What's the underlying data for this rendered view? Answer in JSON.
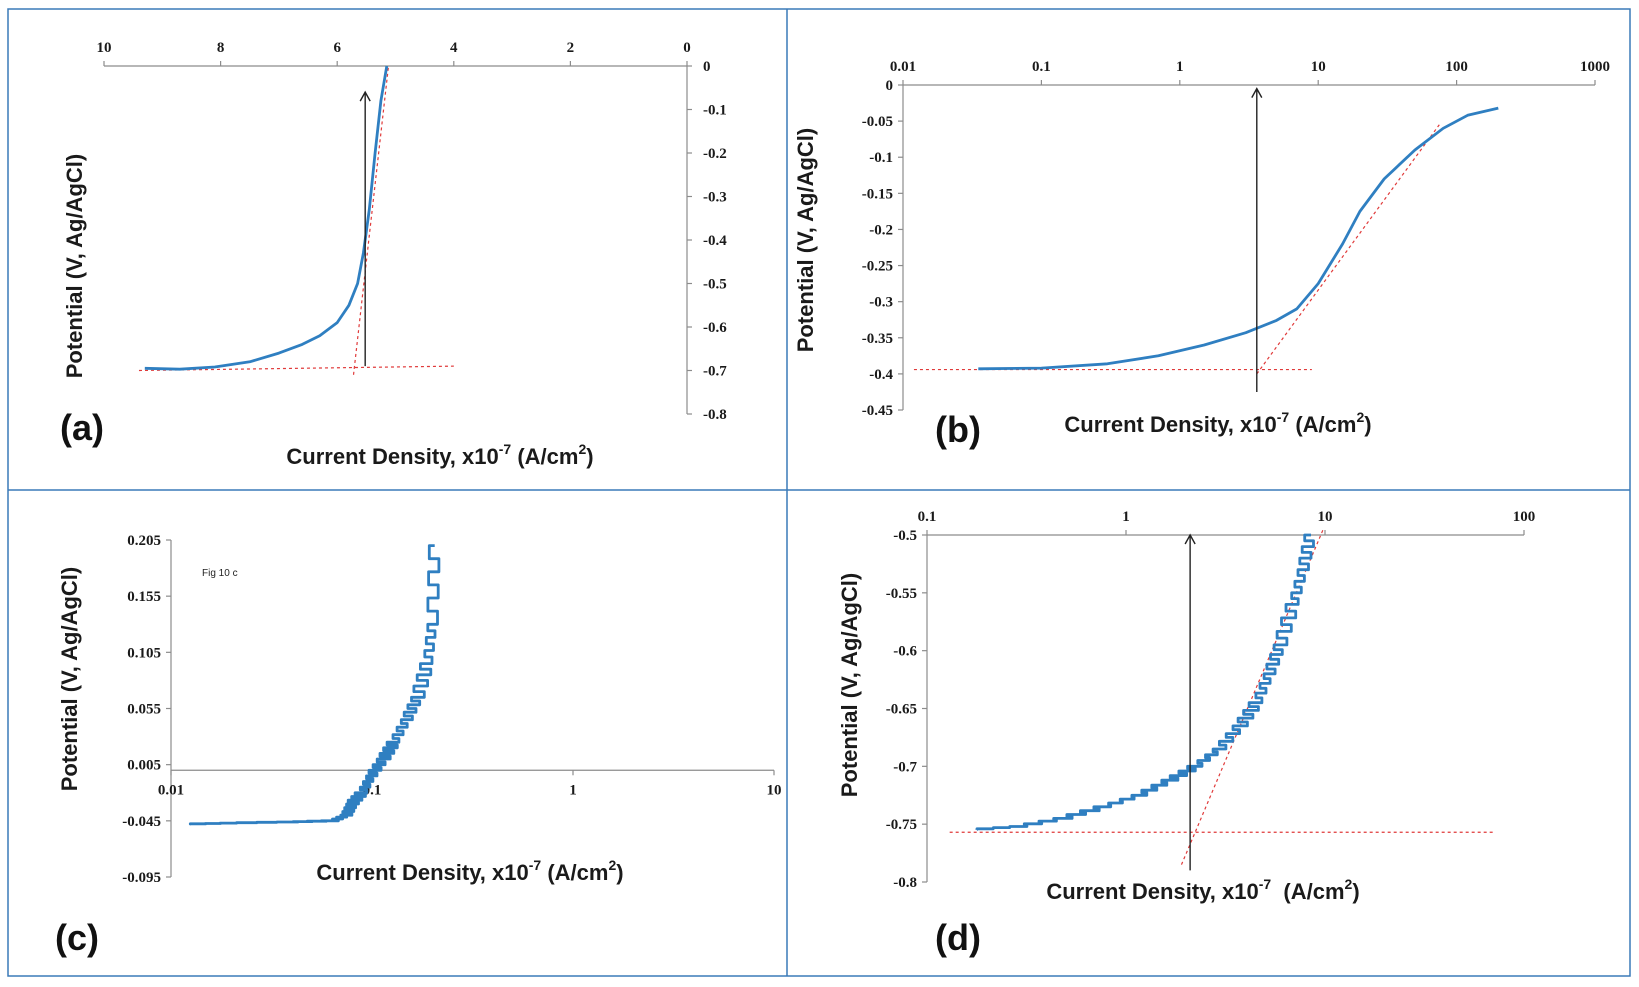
{
  "chart_data": [
    {
      "type": "line",
      "panel_label": "(a)",
      "title": "",
      "xlabel": "Current Density, x10",
      "xlabel_exp": "-7",
      "xlabel_units_pre": " (A/cm",
      "xlabel_units_exp": "2",
      "xlabel_units_post": ")",
      "ylabel": "Potential (V, Ag/AgCl)",
      "x_scale": "linear",
      "x_reversed": true,
      "xlim": [
        0,
        10
      ],
      "ylim": [
        -0.8,
        0
      ],
      "x_ticks": [
        10,
        8,
        6,
        4,
        2,
        0
      ],
      "x_tick_labels": [
        "10",
        "8",
        "6",
        "4",
        "2",
        "0"
      ],
      "y_ticks": [
        0,
        -0.1,
        -0.2,
        -0.3,
        -0.4,
        -0.5,
        -0.6,
        -0.7,
        -0.8
      ],
      "y_tick_labels": [
        "0",
        "-0.1",
        "-0.2",
        "-0.3",
        "-0.4",
        "-0.5",
        "-0.6",
        "-0.7",
        "-0.8"
      ],
      "series": [
        {
          "name": "polarization curve",
          "x": [
            9.3,
            8.7,
            8.1,
            7.5,
            7.0,
            6.6,
            6.3,
            6.0,
            5.8,
            5.65,
            5.55,
            5.45,
            5.35,
            5.25,
            5.15
          ],
          "y": [
            -0.695,
            -0.697,
            -0.692,
            -0.68,
            -0.66,
            -0.64,
            -0.62,
            -0.59,
            -0.55,
            -0.5,
            -0.43,
            -0.33,
            -0.2,
            -0.08,
            0.0
          ]
        }
      ],
      "tangents": [
        {
          "x": [
            9.4,
            4.0
          ],
          "y": [
            -0.7,
            -0.69
          ]
        },
        {
          "x": [
            5.72,
            5.12
          ],
          "y": [
            -0.71,
            0.0
          ]
        }
      ],
      "arrow": {
        "x": 5.52,
        "y_from": -0.69,
        "y_to": -0.06
      }
    },
    {
      "type": "line",
      "panel_label": "(b)",
      "title": "",
      "xlabel": "Current Density, x10",
      "xlabel_exp": "-7",
      "xlabel_units_pre": " (A/cm",
      "xlabel_units_exp": "2",
      "xlabel_units_post": ")",
      "ylabel": "Potential (V, Ag/AgCl)",
      "x_scale": "log",
      "xlim": [
        0.01,
        1000
      ],
      "ylim": [
        -0.45,
        0
      ],
      "x_ticks": [
        0.01,
        0.1,
        1,
        10,
        100,
        1000
      ],
      "x_tick_labels": [
        "0.01",
        "0.1",
        "1",
        "10",
        "100",
        "1000"
      ],
      "y_ticks": [
        0,
        -0.05,
        -0.1,
        -0.15,
        -0.2,
        -0.25,
        -0.3,
        -0.35,
        -0.4,
        -0.45
      ],
      "y_tick_labels": [
        "0",
        "-0.05",
        "-0.1",
        "-0.15",
        "-0.2",
        "-0.25",
        "-0.3",
        "-0.35",
        "-0.4",
        "-0.45"
      ],
      "series": [
        {
          "name": "polarization curve",
          "x": [
            0.035,
            0.1,
            0.3,
            0.7,
            1.5,
            3,
            5,
            7,
            10,
            15,
            20,
            30,
            50,
            80,
            120,
            200
          ],
          "y": [
            -0.393,
            -0.392,
            -0.386,
            -0.375,
            -0.36,
            -0.343,
            -0.326,
            -0.31,
            -0.275,
            -0.22,
            -0.175,
            -0.13,
            -0.09,
            -0.06,
            -0.042,
            -0.032
          ]
        }
      ],
      "tangents": [
        {
          "x": [
            0.012,
            9.0
          ],
          "y": [
            -0.394,
            -0.394
          ]
        },
        {
          "x": [
            3.6,
            75
          ],
          "y": [
            -0.4,
            -0.055
          ]
        }
      ],
      "arrow": {
        "x": 3.6,
        "y_from": -0.425,
        "y_to": -0.005
      }
    },
    {
      "type": "line",
      "panel_label": "(c)",
      "annotation": "Fig 10 c",
      "title": "",
      "xlabel": "Current Density, x10",
      "xlabel_exp": "-7",
      "xlabel_units_pre": " (A/cm",
      "xlabel_units_exp": "2",
      "xlabel_units_post": ")",
      "ylabel": "Potential (V, Ag/AgCl)",
      "x_scale": "log",
      "xlim": [
        0.01,
        10
      ],
      "ylim": [
        -0.095,
        0.205
      ],
      "x_axis_at_y": 0,
      "x_ticks": [
        0.01,
        0.1,
        1,
        10
      ],
      "x_tick_labels": [
        "0.01",
        "0.1",
        "1",
        "10"
      ],
      "y_ticks": [
        0.205,
        0.155,
        0.105,
        0.055,
        0.005,
        -0.045,
        -0.095
      ],
      "y_tick_labels": [
        "0.205",
        "0.155",
        "0.105",
        "0.055",
        "0.005",
        "-0.045",
        "-0.095"
      ],
      "series": [
        {
          "name": "polarization curve (noisy)",
          "x": [
            0.012,
            0.02,
            0.04,
            0.065,
            0.075,
            0.08,
            0.09,
            0.1,
            0.115,
            0.13,
            0.15,
            0.17,
            0.19,
            0.2,
            0.205
          ],
          "y": [
            -0.048,
            -0.047,
            -0.046,
            -0.045,
            -0.04,
            -0.03,
            -0.02,
            -0.005,
            0.01,
            0.025,
            0.045,
            0.065,
            0.095,
            0.13,
            0.2
          ]
        }
      ],
      "tangents": [],
      "arrow": null
    },
    {
      "type": "line",
      "panel_label": "(d)",
      "title": "",
      "xlabel": "Current Density, x10",
      "xlabel_exp": "-7",
      "xlabel_units_pre": "  (A/cm",
      "xlabel_units_exp": "2",
      "xlabel_units_post": ")",
      "ylabel": "Potential (V, Ag/AgCl)",
      "x_scale": "log",
      "xlim": [
        0.1,
        100
      ],
      "ylim": [
        -0.8,
        -0.5
      ],
      "x_ticks": [
        0.1,
        1,
        10,
        100
      ],
      "x_tick_labels": [
        "0.1",
        "1",
        "10",
        "100"
      ],
      "y_ticks": [
        -0.5,
        -0.55,
        -0.6,
        -0.65,
        -0.7,
        -0.75,
        -0.8
      ],
      "y_tick_labels": [
        "-0.5",
        "-0.55",
        "-0.6",
        "-0.65",
        "-0.7",
        "-0.75",
        "-0.8"
      ],
      "series": [
        {
          "name": "polarization curve (noisy)",
          "x": [
            0.17,
            0.3,
            0.5,
            0.8,
            1.2,
            1.7,
            2.3,
            3.0,
            3.8,
            4.6,
            5.3,
            6.0,
            7.0,
            7.8,
            8.5
          ],
          "y": [
            -0.755,
            -0.752,
            -0.745,
            -0.735,
            -0.725,
            -0.712,
            -0.7,
            -0.685,
            -0.665,
            -0.645,
            -0.62,
            -0.595,
            -0.56,
            -0.53,
            -0.5
          ]
        }
      ],
      "tangents": [
        {
          "x": [
            0.13,
            70
          ],
          "y": [
            -0.757,
            -0.757
          ]
        },
        {
          "x": [
            1.9,
            9.8
          ],
          "y": [
            -0.785,
            -0.495
          ]
        }
      ],
      "arrow": {
        "x": 2.1,
        "y_from": -0.79,
        "y_to": -0.5
      }
    }
  ]
}
